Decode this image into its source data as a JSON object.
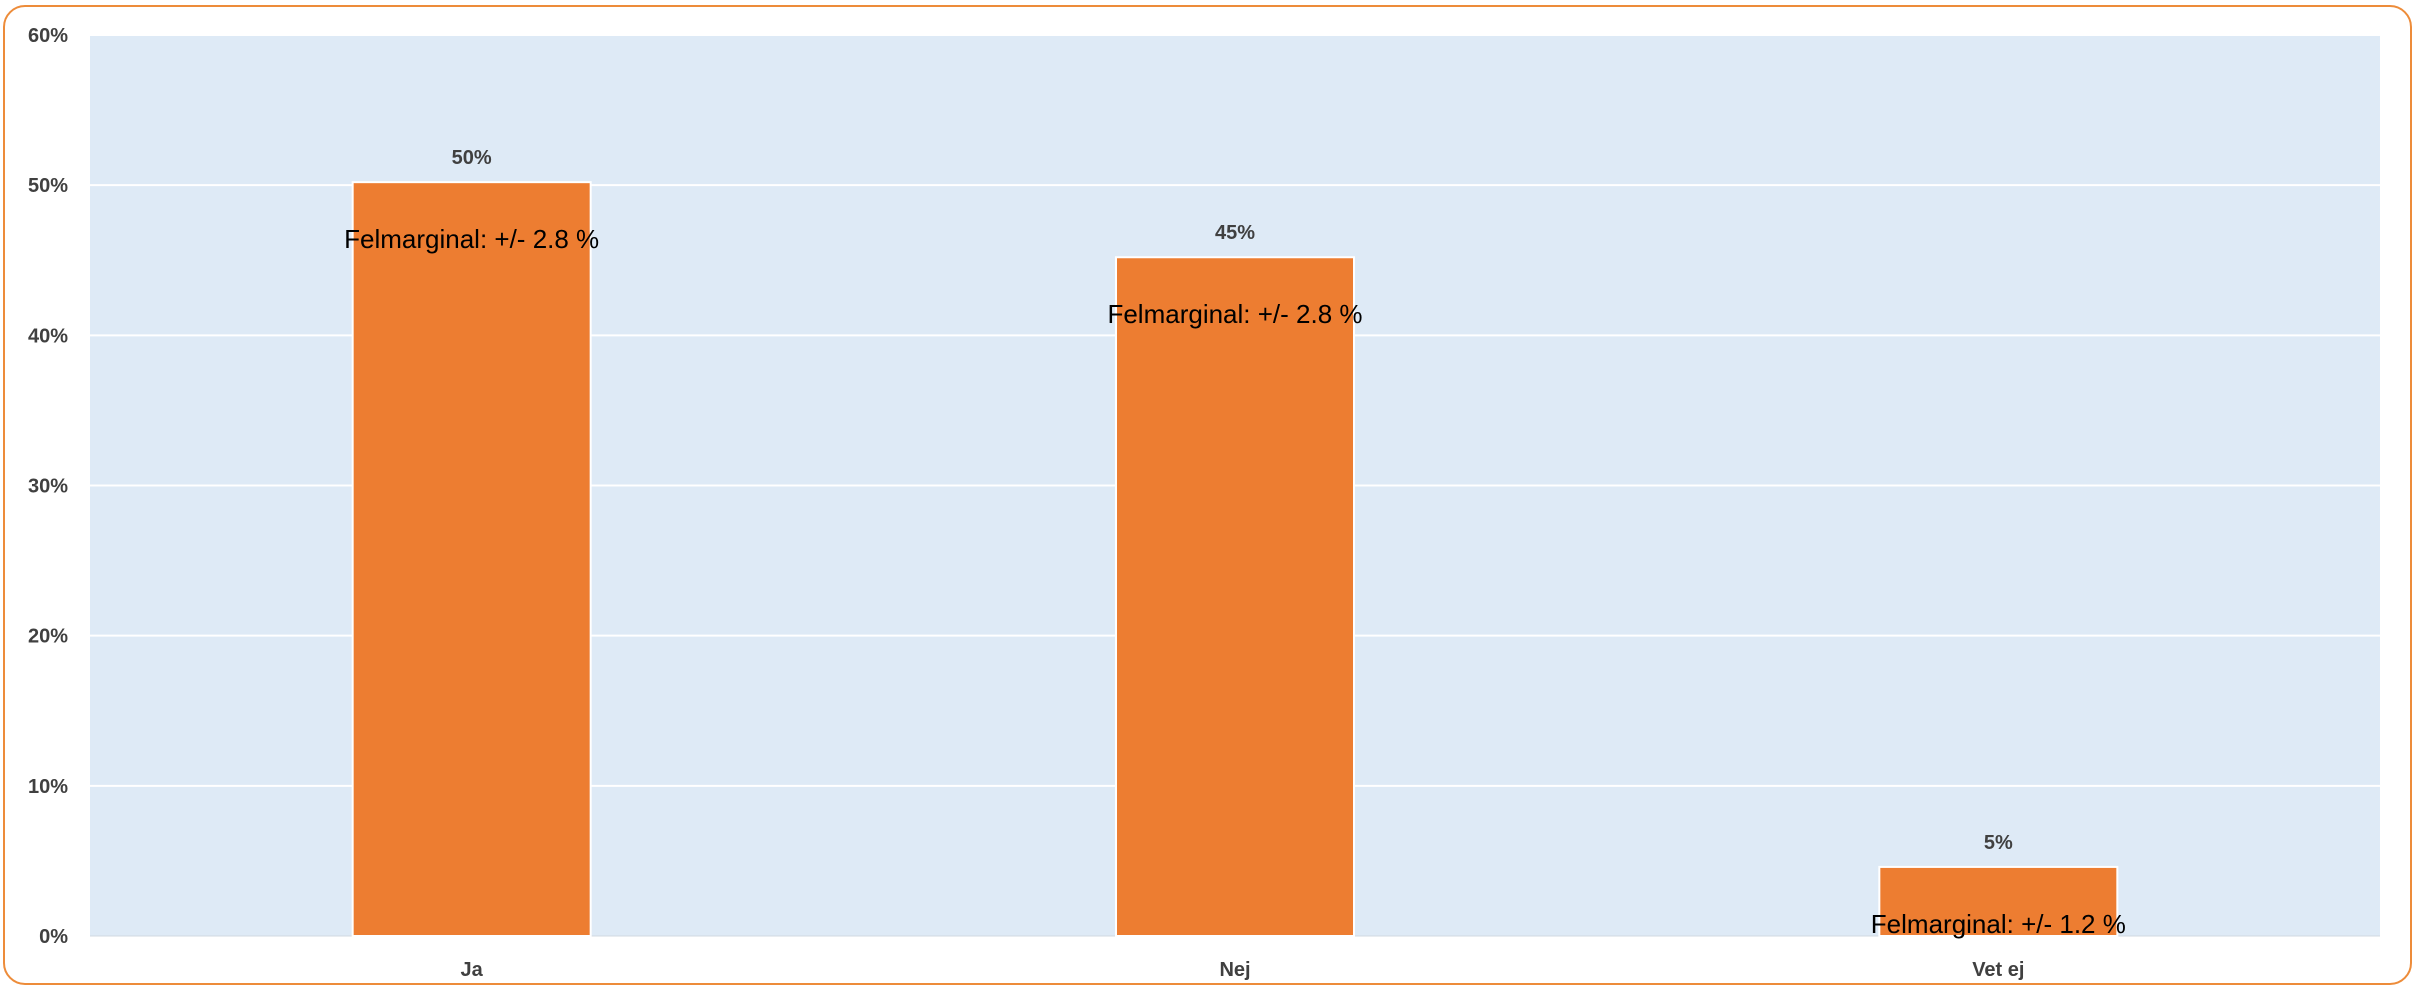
{
  "chart_data": {
    "type": "bar",
    "categories": [
      "Ja",
      "Nej",
      "Vet ej"
    ],
    "values": [
      50.2,
      45.2,
      4.6
    ],
    "data_labels": [
      "50%",
      "45%",
      "5%"
    ],
    "annotations": [
      "Felmarginal: +/- 2.8 %",
      "Felmarginal: +/- 2.8 %",
      "Felmarginal: +/- 1.2 %"
    ],
    "y_ticks": [
      0,
      10,
      20,
      30,
      40,
      50,
      60
    ],
    "y_tick_labels": [
      "0%",
      "10%",
      "20%",
      "30%",
      "40%",
      "50%",
      "60%"
    ],
    "ylim": [
      0,
      60
    ],
    "grid": true,
    "legend": "none",
    "title": "",
    "xlabel": "",
    "ylabel": ""
  },
  "colors": {
    "bar": "#ed7d31",
    "plot_background": "#deeaf6",
    "gridline": "#ffffff",
    "frame_border": "#ed8c3a",
    "tick_text": "#404040",
    "annotation_text": "#000000"
  }
}
